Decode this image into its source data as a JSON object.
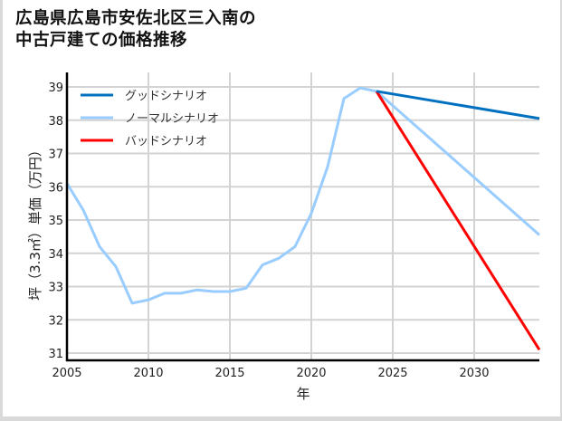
{
  "title": "広島県広島市安佐北区三入南の\n中古戸建ての価格推移",
  "chart_data": {
    "type": "line",
    "title": "広島県広島市安佐北区三入南の中古戸建ての価格推移",
    "xlabel": "年",
    "ylabel": "坪（3.3㎡）単価（万円）",
    "xlim": [
      2005,
      2034
    ],
    "ylim": [
      30.8,
      39.4
    ],
    "x_ticks": [
      2005,
      2010,
      2015,
      2020,
      2025,
      2030
    ],
    "y_ticks": [
      31,
      32,
      33,
      34,
      35,
      36,
      37,
      38,
      39
    ],
    "grid": true,
    "legend_position": "upper left",
    "series": [
      {
        "name": "グッドシナリオ",
        "color": "#0070c0",
        "x": [
          2024,
          2034
        ],
        "values": [
          38.87,
          38.05
        ]
      },
      {
        "name": "ノーマルシナリオ",
        "color": "#99ccff",
        "x": [
          2005,
          2006,
          2007,
          2008,
          2009,
          2010,
          2011,
          2012,
          2013,
          2014,
          2015,
          2016,
          2017,
          2018,
          2019,
          2020,
          2021,
          2022,
          2023,
          2024,
          2034
        ],
        "values": [
          36.1,
          35.3,
          34.2,
          33.6,
          32.5,
          32.6,
          32.8,
          32.8,
          32.9,
          32.85,
          32.85,
          32.95,
          33.65,
          33.85,
          34.2,
          35.2,
          36.6,
          38.65,
          38.97,
          38.87,
          34.55
        ]
      },
      {
        "name": "バッドシナリオ",
        "color": "#ff0000",
        "x": [
          2024,
          2034
        ],
        "values": [
          38.87,
          31.1
        ]
      }
    ]
  }
}
